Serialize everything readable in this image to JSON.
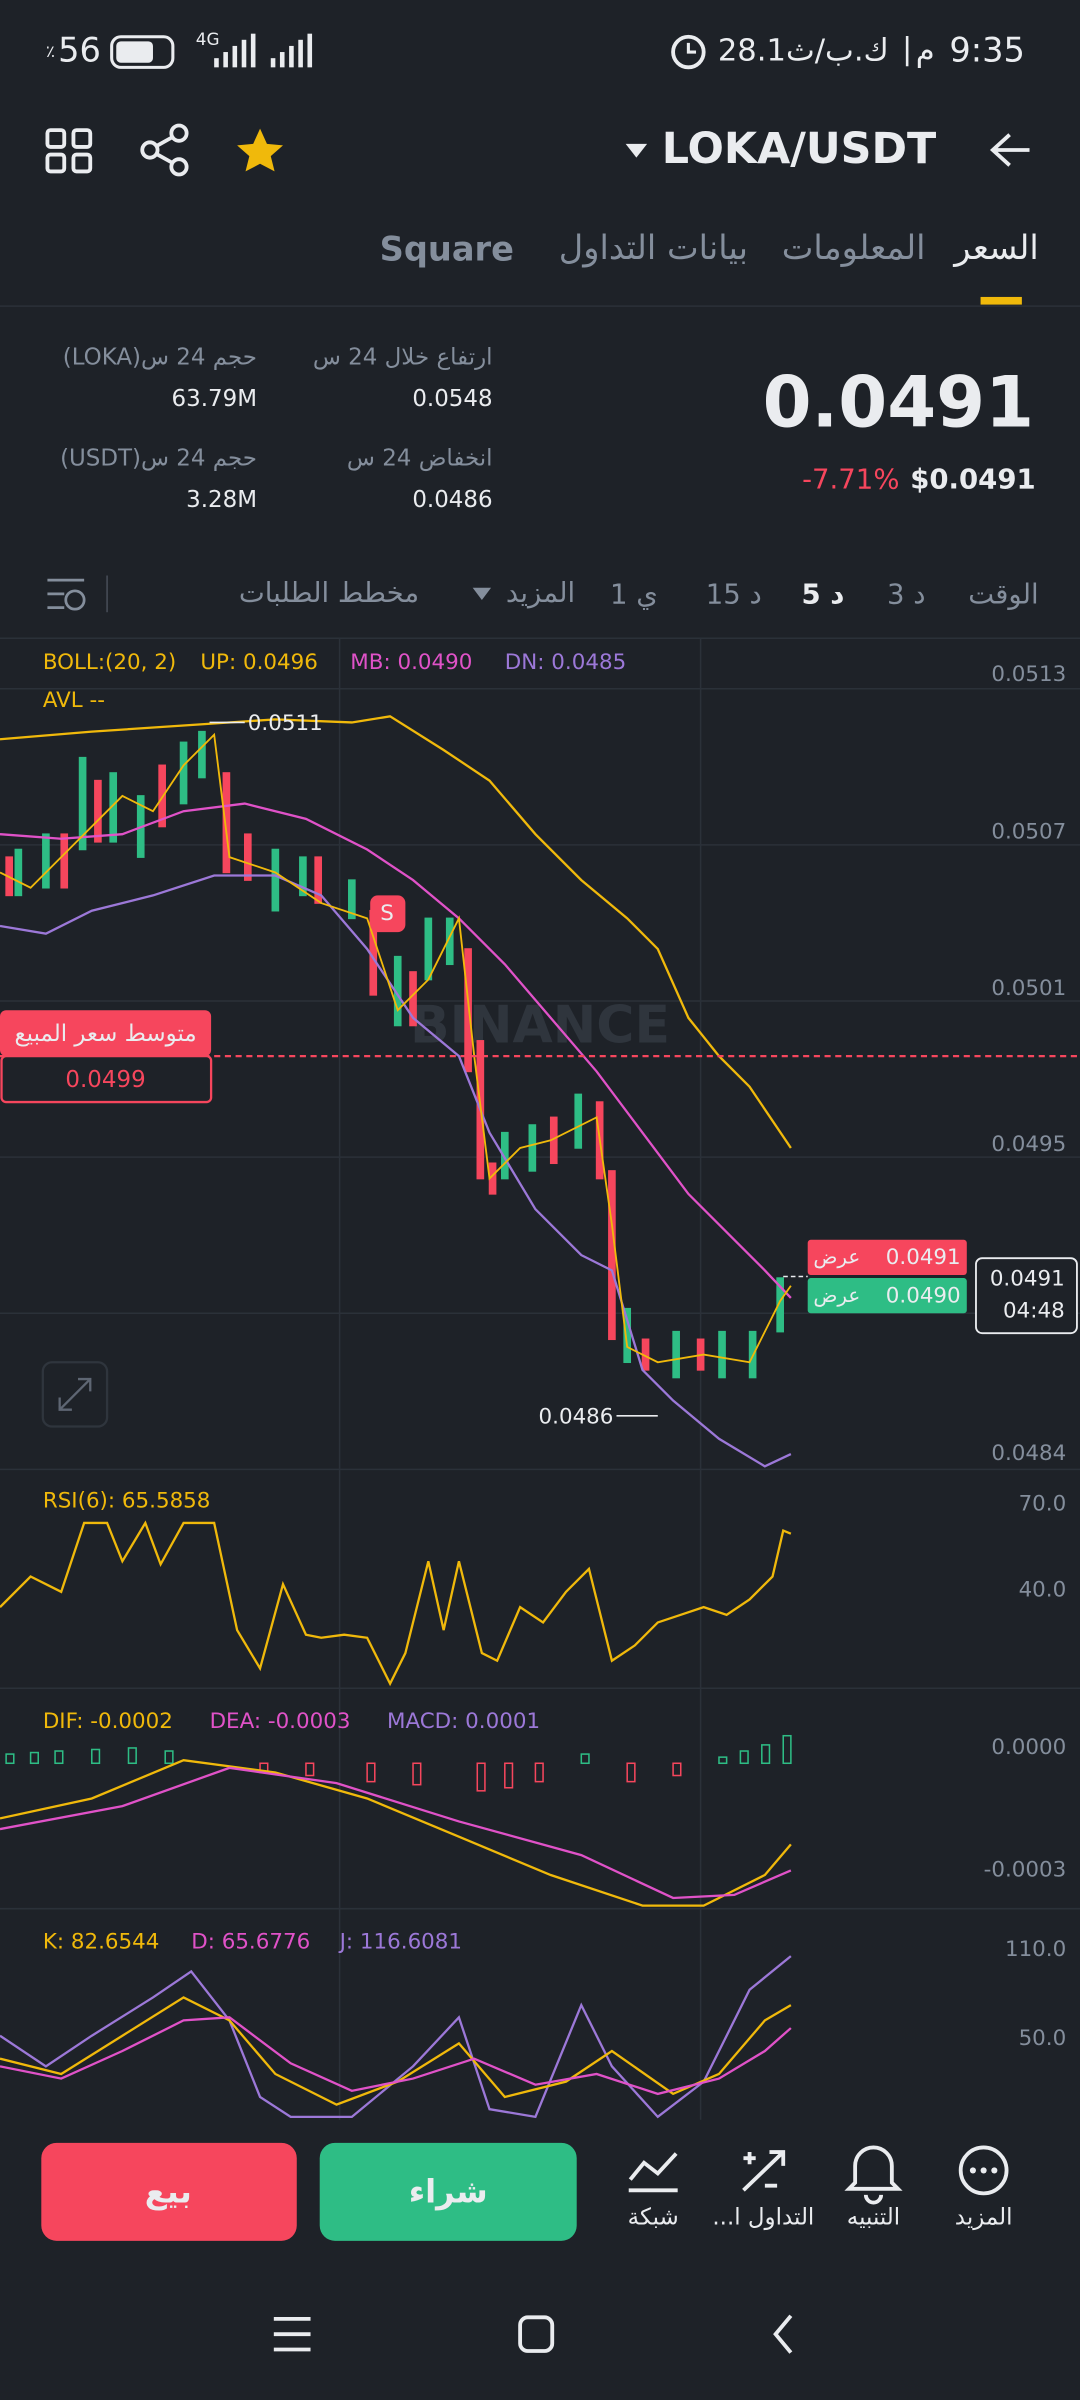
{
  "status_bar": {
    "time": "9:35",
    "period": "م",
    "data_rate": "28.1ك.ب/ث",
    "battery": "56",
    "battery_unit": "٪",
    "network": "4G"
  },
  "header": {
    "pair": "LOKA/USDT"
  },
  "tabs": [
    "السعر",
    "المعلومات",
    "بيانات التداول",
    "Square"
  ],
  "price": {
    "last": "0.0491",
    "change": "-7.71%",
    "usd": "$0.0491"
  },
  "stats": [
    {
      "label": "ارتفاع خلال 24 س",
      "value": "0.0548"
    },
    {
      "label": "حجم 24 س(LOKA)",
      "value": "63.79M"
    },
    {
      "label": "انخفاض 24 س",
      "value": "0.0486"
    },
    {
      "label": "حجم 24 س(USDT)",
      "value": "3.28M"
    }
  ],
  "intervals": [
    "الوقت",
    "3 د",
    "5 د",
    "15 د",
    "1 ي",
    "المزيد",
    "مخطط الطلبات"
  ],
  "main_chart": {
    "indicators": [
      "BOLL:(20, 2)",
      "UP: 0.0496",
      "MB: 0.0490",
      "DN: 0.0485"
    ],
    "avl": "AVL --",
    "y_labels": [
      "0.0513",
      "0.0507",
      "0.0501",
      "0.0495",
      "0.0484"
    ],
    "high": "0.0511",
    "low": "0.0486",
    "watermark": "BINANCE",
    "signal": "S",
    "avg_sell": {
      "label": "متوسط سعر المبيع",
      "value": "0.0499"
    },
    "ask": {
      "label": "عرض",
      "value": "0.0491"
    },
    "bid": {
      "label": "عرض",
      "value": "0.0490"
    },
    "current": {
      "value": "0.0491",
      "countdown": "04:48"
    }
  },
  "rsi": {
    "label": "RSI(6): 65.5858",
    "y_labels": [
      "70.0",
      "40.0"
    ]
  },
  "macd": {
    "labels": [
      "DIF: -0.0002",
      "DEA: -0.0003",
      "MACD: 0.0001"
    ],
    "y_labels": [
      "0.0000",
      "-0.0003"
    ]
  },
  "kdj": {
    "labels": [
      "K: 82.6544",
      "D: 65.6776",
      "J: 116.6081"
    ],
    "y_labels": [
      "110.0",
      "50.0"
    ]
  },
  "actions": {
    "sell": "بيع",
    "buy": "شراء"
  },
  "tools": [
    "شبكة",
    "التداول ا...",
    "التنبيه",
    "المزيد"
  ]
}
